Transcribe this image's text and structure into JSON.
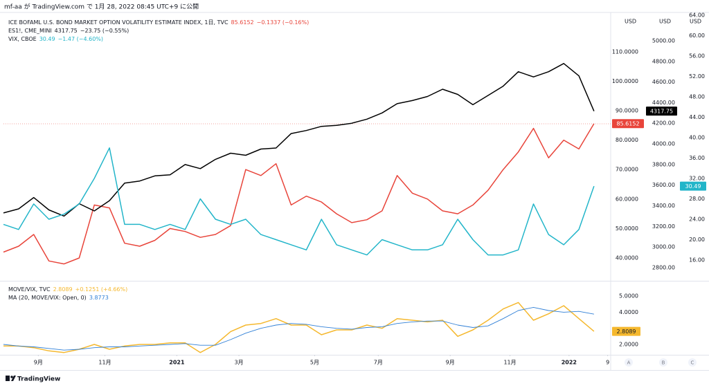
{
  "header": "mf-aa が TradingView.com で 1月 28, 2022 08:45 UTC+9 に公開",
  "footer": "TradingView",
  "scale_buttons": [
    "A",
    "B",
    "C"
  ],
  "axis_units": [
    "USD",
    "USD",
    "USD"
  ],
  "chart_data": [
    {
      "type": "line",
      "x": [
        0,
        2,
        4,
        6,
        8,
        10,
        12,
        14,
        16,
        18,
        20,
        22,
        24,
        26,
        28,
        30,
        32,
        34,
        36,
        38,
        40,
        42,
        44,
        46,
        48,
        50,
        52,
        54,
        56,
        58,
        60,
        62,
        64,
        66,
        68,
        70,
        72,
        74,
        76,
        78
      ],
      "xlim": [
        0,
        80.2
      ],
      "series": [
        {
          "name": "ICE BOFAML U.S. BOND MARKET OPTION VOLATILITY ESTIMATE INDEX, 1日, TVC",
          "change": "−0.1337 (−0.16%)",
          "color": "#e8443a",
          "axis": "y",
          "values": [
            42,
            44,
            48,
            39,
            38,
            40,
            58,
            57,
            45,
            44,
            46,
            50,
            49,
            47,
            48,
            51,
            70,
            68,
            72,
            58,
            61,
            59,
            55,
            52,
            53,
            56,
            68,
            62,
            60,
            56,
            55,
            58,
            63,
            70,
            76,
            84,
            74,
            80,
            77,
            85.6152
          ]
        },
        {
          "name": "ES1!, CME_MINI",
          "change": "−23.75 (−0.55%)",
          "color": "#000000",
          "axis": "y2",
          "values": [
            3330,
            3370,
            3480,
            3360,
            3300,
            3420,
            3350,
            3450,
            3620,
            3640,
            3690,
            3700,
            3800,
            3760,
            3850,
            3910,
            3890,
            3950,
            3960,
            4100,
            4130,
            4170,
            4180,
            4200,
            4240,
            4300,
            4390,
            4420,
            4460,
            4530,
            4480,
            4380,
            4470,
            4560,
            4700,
            4650,
            4700,
            4780,
            4660,
            4317.75
          ]
        },
        {
          "name": "VIX, CBOE",
          "change": "−1.47 (−4.60%)",
          "color": "#22b5c9",
          "axis": "y3",
          "values": [
            23,
            22,
            27,
            24,
            25,
            27,
            32,
            38,
            23,
            23,
            22,
            23,
            22,
            28,
            24,
            23,
            24,
            21,
            20,
            19,
            18,
            24,
            19,
            18,
            17,
            20,
            19,
            18,
            18,
            19,
            24,
            20,
            17,
            17,
            18,
            27,
            21,
            19,
            22,
            30.49
          ]
        }
      ],
      "ylim": [
        32.5,
        122.4
      ],
      "yticks": [
        {
          "value": 40,
          "label": "40.0000"
        },
        {
          "value": 50,
          "label": "50.0000"
        },
        {
          "value": 60,
          "label": "60.0000"
        },
        {
          "value": 70,
          "label": "70.0000"
        },
        {
          "value": 80,
          "label": "80.0000"
        },
        {
          "value": 90,
          "label": "90.0000"
        },
        {
          "value": 100,
          "label": "100.0000"
        },
        {
          "value": 110,
          "label": "110.0000"
        }
      ],
      "y2lim": [
        2679,
        5248
      ],
      "y2ticks": [
        {
          "value": 2800,
          "label": "2800.00"
        },
        {
          "value": 3000,
          "label": "3000.00"
        },
        {
          "value": 3200,
          "label": "3200.00"
        },
        {
          "value": 3400,
          "label": "3400.00"
        },
        {
          "value": 3600,
          "label": "3600.00"
        },
        {
          "value": 3800,
          "label": "3800.00"
        },
        {
          "value": 4000,
          "label": "4000.00"
        },
        {
          "value": 4200,
          "label": "4200.00"
        },
        {
          "value": 4400,
          "label": "4400.00"
        },
        {
          "value": 4600,
          "label": "4600.00"
        },
        {
          "value": 4800,
          "label": "4800.00"
        },
        {
          "value": 5000,
          "label": "5000.00"
        }
      ],
      "y3lim": [
        12.07,
        64
      ],
      "y3ticks": [
        {
          "value": 16,
          "label": "16.00"
        },
        {
          "value": 20,
          "label": "20.00"
        },
        {
          "value": 24,
          "label": "24.00"
        },
        {
          "value": 28,
          "label": "28.00"
        },
        {
          "value": 32,
          "label": "32.00"
        },
        {
          "value": 36,
          "label": "36.00"
        },
        {
          "value": 40,
          "label": "40.00"
        },
        {
          "value": 44,
          "label": "44.00"
        },
        {
          "value": 48,
          "label": "48.00"
        },
        {
          "value": 52,
          "label": "52.00"
        },
        {
          "value": 56,
          "label": "56.00"
        },
        {
          "value": 60,
          "label": "60.00"
        },
        {
          "value": 64,
          "label": "64.00"
        }
      ]
    },
    {
      "type": "line",
      "x": [
        0,
        2,
        4,
        6,
        8,
        10,
        12,
        14,
        16,
        18,
        20,
        22,
        24,
        26,
        28,
        30,
        32,
        34,
        36,
        38,
        40,
        42,
        44,
        46,
        48,
        50,
        52,
        54,
        56,
        58,
        60,
        62,
        64,
        66,
        68,
        70,
        72,
        74,
        76,
        78
      ],
      "xlim": [
        0,
        80.2
      ],
      "series": [
        {
          "name": "MOVE/VIX, TVC",
          "change": "+0.1251 (+4.66%)",
          "color": "#f5b82e",
          "values": [
            1.9,
            1.9,
            1.8,
            1.6,
            1.5,
            1.7,
            2.0,
            1.7,
            1.9,
            2.0,
            2.0,
            2.1,
            2.1,
            1.5,
            2.0,
            2.8,
            3.2,
            3.3,
            3.6,
            3.2,
            3.2,
            2.6,
            2.9,
            2.9,
            3.2,
            3.0,
            3.6,
            3.5,
            3.4,
            3.5,
            2.5,
            2.9,
            3.5,
            4.2,
            4.6,
            3.5,
            3.9,
            4.4,
            3.6,
            2.8089
          ]
        },
        {
          "name": "MA (20, MOVE/VIX: Open, 0)",
          "color": "#2f7fd6",
          "values": [
            2.0,
            1.9,
            1.85,
            1.75,
            1.65,
            1.7,
            1.8,
            1.85,
            1.85,
            1.9,
            1.95,
            2.0,
            2.05,
            1.95,
            1.95,
            2.3,
            2.7,
            3.0,
            3.2,
            3.3,
            3.25,
            3.1,
            3.0,
            2.95,
            3.05,
            3.1,
            3.3,
            3.4,
            3.45,
            3.45,
            3.2,
            3.05,
            3.15,
            3.6,
            4.1,
            4.3,
            4.1,
            4.0,
            4.05,
            3.8773
          ]
        }
      ],
      "ylim": [
        1.4,
        5.86
      ],
      "yticks": [
        {
          "value": 2,
          "label": "2.0000"
        },
        {
          "value": 4,
          "label": "4.0000"
        },
        {
          "value": 5,
          "label": "5.0000"
        }
      ],
      "xticks": [
        {
          "value": 4.6,
          "label": "9月"
        },
        {
          "value": 13.4,
          "label": "11月"
        },
        {
          "value": 22.9,
          "label": "2021"
        },
        {
          "value": 31.1,
          "label": "3月"
        },
        {
          "value": 41.1,
          "label": "5月"
        },
        {
          "value": 49.5,
          "label": "7月"
        },
        {
          "value": 59,
          "label": "9月"
        },
        {
          "value": 66.9,
          "label": "11月"
        },
        {
          "value": 74.7,
          "label": "2022"
        },
        {
          "value": 79.8,
          "label": "9"
        }
      ]
    }
  ]
}
